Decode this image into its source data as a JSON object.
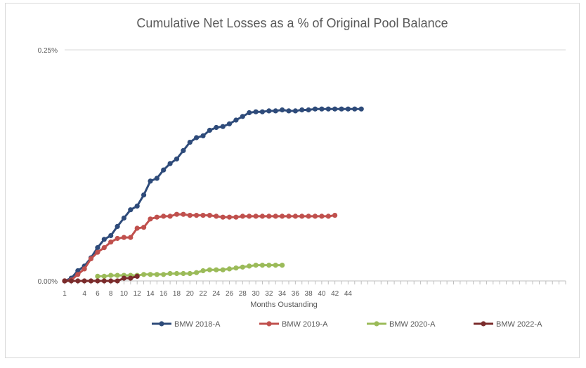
{
  "chart_data": {
    "type": "line",
    "title": "Cumulative Net Losses as a % of Original Pool Balance",
    "xlabel": "Months Oustanding",
    "ylabel": "",
    "ylim": [
      0,
      0.25
    ],
    "y_ticks": [
      "0.00%",
      "0.25%"
    ],
    "x_tick_labels": [
      "1",
      "4",
      "6",
      "8",
      "10",
      "12",
      "14",
      "16",
      "18",
      "20",
      "22",
      "24",
      "26",
      "28",
      "30",
      "32",
      "34",
      "36",
      "38",
      "40",
      "42",
      "44"
    ],
    "x_range": [
      1,
      77
    ],
    "grid": "horizontal",
    "legend_position": "bottom",
    "series": [
      {
        "name": "BMW 2018-A",
        "color": "#2e4b7a",
        "values": [
          0.0,
          0.003,
          0.011,
          0.016,
          0.025,
          0.036,
          0.045,
          0.049,
          0.059,
          0.068,
          0.077,
          0.081,
          0.093,
          0.108,
          0.111,
          0.12,
          0.127,
          0.132,
          0.141,
          0.15,
          0.155,
          0.157,
          0.163,
          0.166,
          0.167,
          0.17,
          0.174,
          0.178,
          0.182,
          0.183,
          0.183,
          0.184,
          0.184,
          0.185,
          0.184,
          0.184,
          0.185,
          0.185,
          0.186,
          0.186,
          0.186,
          0.186,
          0.186,
          0.186,
          0.186,
          0.186
        ]
      },
      {
        "name": "BMW 2019-A",
        "color": "#c0504d",
        "values": [
          0.0,
          0.001,
          0.007,
          0.013,
          0.024,
          0.031,
          0.036,
          0.042,
          0.046,
          0.047,
          0.047,
          0.057,
          0.058,
          0.067,
          0.069,
          0.07,
          0.07,
          0.072,
          0.072,
          0.071,
          0.071,
          0.071,
          0.071,
          0.07,
          0.069,
          0.069,
          0.069,
          0.07,
          0.07,
          0.07,
          0.07,
          0.07,
          0.07,
          0.07,
          0.07,
          0.07,
          0.07,
          0.07,
          0.07,
          0.07,
          0.07,
          0.071
        ]
      },
      {
        "name": "BMW 2020-A",
        "color": "#9bbb59",
        "values": [
          0.005,
          0.005,
          0.006,
          0.006,
          0.006,
          0.006,
          0.006,
          0.007,
          0.007,
          0.007,
          0.007,
          0.008,
          0.008,
          0.008,
          0.008,
          0.009,
          0.011,
          0.012,
          0.012,
          0.012,
          0.013,
          0.014,
          0.015,
          0.016,
          0.017,
          0.017,
          0.017,
          0.017,
          0.017
        ]
      },
      {
        "name": "BMW 2022-A",
        "color": "#7b2c2c",
        "values": [
          0.0,
          0.0,
          0.0,
          0.0,
          0.0,
          0.0,
          0.0,
          0.0,
          0.0,
          0.003,
          0.003,
          0.005
        ]
      }
    ],
    "series_start_month": [
      1,
      1,
      6,
      1
    ]
  }
}
